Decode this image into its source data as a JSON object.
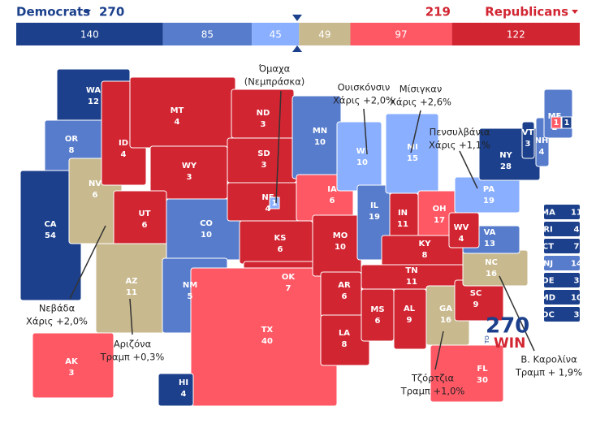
{
  "header": {
    "left_party": "Democrats",
    "left_total": 270,
    "right_total": 219,
    "right_party": "Republicans",
    "left_color": "#1c408c",
    "right_color": "#d22532"
  },
  "bar": [
    {
      "value": 140,
      "color": "#1c408c"
    },
    {
      "value": 85,
      "color": "#577ccc"
    },
    {
      "value": 45,
      "color": "#8aafff"
    },
    {
      "value": 49,
      "color": "#c8b98e"
    },
    {
      "value": 97,
      "color": "#ff5865"
    },
    {
      "value": 122,
      "color": "#d22532"
    }
  ],
  "states": [
    {
      "abbr": "WA",
      "ev": 12,
      "color": "#1c408c"
    },
    {
      "abbr": "OR",
      "ev": 8,
      "color": "#577ccc"
    },
    {
      "abbr": "CA",
      "ev": 54,
      "color": "#1c408c"
    },
    {
      "abbr": "NV",
      "ev": 6,
      "color": "#c8b98e"
    },
    {
      "abbr": "ID",
      "ev": 4,
      "color": "#d22532"
    },
    {
      "abbr": "MT",
      "ev": 4,
      "color": "#d22532"
    },
    {
      "abbr": "WY",
      "ev": 3,
      "color": "#d22532"
    },
    {
      "abbr": "UT",
      "ev": 6,
      "color": "#d22532"
    },
    {
      "abbr": "AZ",
      "ev": 11,
      "color": "#c8b98e"
    },
    {
      "abbr": "CO",
      "ev": 10,
      "color": "#577ccc"
    },
    {
      "abbr": "NM",
      "ev": 5,
      "color": "#577ccc"
    },
    {
      "abbr": "ND",
      "ev": 3,
      "color": "#d22532"
    },
    {
      "abbr": "SD",
      "ev": 3,
      "color": "#d22532"
    },
    {
      "abbr": "NE",
      "ev": 4,
      "color": "#d22532"
    },
    {
      "abbr": "KS",
      "ev": 6,
      "color": "#d22532"
    },
    {
      "abbr": "OK",
      "ev": 7,
      "color": "#d22532"
    },
    {
      "abbr": "TX",
      "ev": 40,
      "color": "#ff5865"
    },
    {
      "abbr": "MN",
      "ev": 10,
      "color": "#577ccc"
    },
    {
      "abbr": "IA",
      "ev": 6,
      "color": "#ff5865"
    },
    {
      "abbr": "MO",
      "ev": 10,
      "color": "#d22532"
    },
    {
      "abbr": "AR",
      "ev": 6,
      "color": "#d22532"
    },
    {
      "abbr": "LA",
      "ev": 8,
      "color": "#d22532"
    },
    {
      "abbr": "WI",
      "ev": 10,
      "color": "#8aafff"
    },
    {
      "abbr": "IL",
      "ev": 19,
      "color": "#577ccc"
    },
    {
      "abbr": "MI",
      "ev": 15,
      "color": "#8aafff"
    },
    {
      "abbr": "IN",
      "ev": 11,
      "color": "#d22532"
    },
    {
      "abbr": "OH",
      "ev": 17,
      "color": "#ff5865"
    },
    {
      "abbr": "KY",
      "ev": 8,
      "color": "#d22532"
    },
    {
      "abbr": "TN",
      "ev": 11,
      "color": "#d22532"
    },
    {
      "abbr": "MS",
      "ev": 6,
      "color": "#d22532"
    },
    {
      "abbr": "AL",
      "ev": 9,
      "color": "#d22532"
    },
    {
      "abbr": "GA",
      "ev": 16,
      "color": "#c8b98e"
    },
    {
      "abbr": "FL",
      "ev": 30,
      "color": "#ff5865"
    },
    {
      "abbr": "SC",
      "ev": 9,
      "color": "#d22532"
    },
    {
      "abbr": "NC",
      "ev": 16,
      "color": "#c8b98e"
    },
    {
      "abbr": "VA",
      "ev": 13,
      "color": "#577ccc"
    },
    {
      "abbr": "WV",
      "ev": 4,
      "color": "#d22532"
    },
    {
      "abbr": "PA",
      "ev": 19,
      "color": "#8aafff"
    },
    {
      "abbr": "NY",
      "ev": 28,
      "color": "#1c408c"
    },
    {
      "abbr": "VT",
      "ev": 3,
      "color": "#1c408c"
    },
    {
      "abbr": "NH",
      "ev": 4,
      "color": "#577ccc"
    },
    {
      "abbr": "ME",
      "ev": 2,
      "color": "#577ccc"
    },
    {
      "abbr": "AK",
      "ev": 3,
      "color": "#ff5865"
    },
    {
      "abbr": "HI",
      "ev": 4,
      "color": "#1c408c"
    }
  ],
  "districts": [
    {
      "value": 1,
      "color": "#8aafff"
    },
    {
      "value": 1,
      "color": "#ff5865"
    },
    {
      "value": 1,
      "color": "#1c408c"
    }
  ],
  "small_states": [
    {
      "abbr": "MA",
      "ev": 11,
      "color": "#1c408c"
    },
    {
      "abbr": "RI",
      "ev": 4,
      "color": "#1c408c"
    },
    {
      "abbr": "CT",
      "ev": 7,
      "color": "#1c408c"
    },
    {
      "abbr": "NJ",
      "ev": 14,
      "color": "#577ccc"
    },
    {
      "abbr": "DE",
      "ev": 3,
      "color": "#1c408c"
    },
    {
      "abbr": "MD",
      "ev": 10,
      "color": "#1c408c"
    },
    {
      "abbr": "DC",
      "ev": 3,
      "color": "#1c408c"
    }
  ],
  "annotations": [
    {
      "label": "Όμαχα",
      "sub": "(Νεμπράσκα)",
      "color": "#222222"
    },
    {
      "label": "Ουισκόνσιν",
      "sub": "Χάρις +2,0%",
      "color": "#1a73c8"
    },
    {
      "label": "Μίσιγκαν",
      "sub": "Χάρις +2,6%",
      "color": "#1a73c8"
    },
    {
      "label": "Πενσυλβάνια",
      "sub": "Χάρις +1,1%",
      "color": "#1a73c8"
    },
    {
      "label": "Νεβάδα",
      "sub": "Χάρις +2,0%",
      "color": "#1a73c8"
    },
    {
      "label": "Αριζόνα",
      "sub": "Τραμπ +0,3%",
      "color": "#e8222d"
    },
    {
      "label": "Τζόρτζια",
      "sub": "Τραμπ +1,0%",
      "color": "#e8222d"
    },
    {
      "label": "Β. Καρολίνα",
      "sub": "Τραμπ + 1,9%",
      "color": "#e8222d"
    }
  ],
  "logo": {
    "number": "270",
    "top": "TO",
    "bottom": "WIN"
  }
}
